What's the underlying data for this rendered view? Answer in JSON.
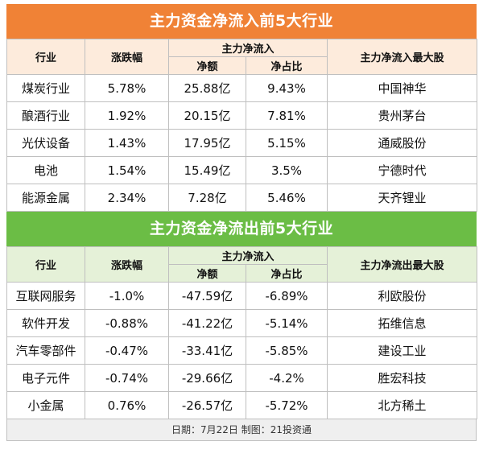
{
  "inflow": {
    "title": "主力资金净流入前5大行业",
    "headers": {
      "industry": "行业",
      "change": "涨跌幅",
      "group": "主力净流入",
      "net": "净额",
      "ratio": "净占比",
      "top": "主力净流入最大股"
    },
    "rows": [
      {
        "industry": "煤炭行业",
        "change": "5.78%",
        "net": "25.88亿",
        "ratio": "9.43%",
        "top": "中国神华"
      },
      {
        "industry": "酿酒行业",
        "change": "1.92%",
        "net": "20.15亿",
        "ratio": "7.81%",
        "top": "贵州茅台"
      },
      {
        "industry": "光伏设备",
        "change": "1.43%",
        "net": "17.95亿",
        "ratio": "5.15%",
        "top": "通威股份"
      },
      {
        "industry": "电池",
        "change": "1.54%",
        "net": "15.49亿",
        "ratio": "3.5%",
        "top": "宁德时代"
      },
      {
        "industry": "能源金属",
        "change": "2.34%",
        "net": "7.28亿",
        "ratio": "5.46%",
        "top": "天齐锂业"
      }
    ]
  },
  "outflow": {
    "title": "主力资金净流出前5大行业",
    "headers": {
      "industry": "行业",
      "change": "涨跌幅",
      "group": "主力净流入",
      "net": "净额",
      "ratio": "净占比",
      "top": "主力净流出最大股"
    },
    "rows": [
      {
        "industry": "互联网服务",
        "change": "-1.0%",
        "net": "-47.59亿",
        "ratio": "-6.89%",
        "top": "利欧股份"
      },
      {
        "industry": "软件开发",
        "change": "-0.88%",
        "net": "-41.22亿",
        "ratio": "-5.14%",
        "top": "拓维信息"
      },
      {
        "industry": "汽车零部件",
        "change": "-0.47%",
        "net": "-33.41亿",
        "ratio": "-5.85%",
        "top": "建设工业"
      },
      {
        "industry": "电子元件",
        "change": "-0.74%",
        "net": "-29.66亿",
        "ratio": "-4.2%",
        "top": "胜宏科技"
      },
      {
        "industry": "小金属",
        "change": "0.76%",
        "net": "-26.57亿",
        "ratio": "-5.72%",
        "top": "北方稀土"
      }
    ]
  },
  "footer": "日期：7月22日 制图：21投资通",
  "colors": {
    "inflow": "#f08236",
    "outflow": "#6bbd45"
  }
}
